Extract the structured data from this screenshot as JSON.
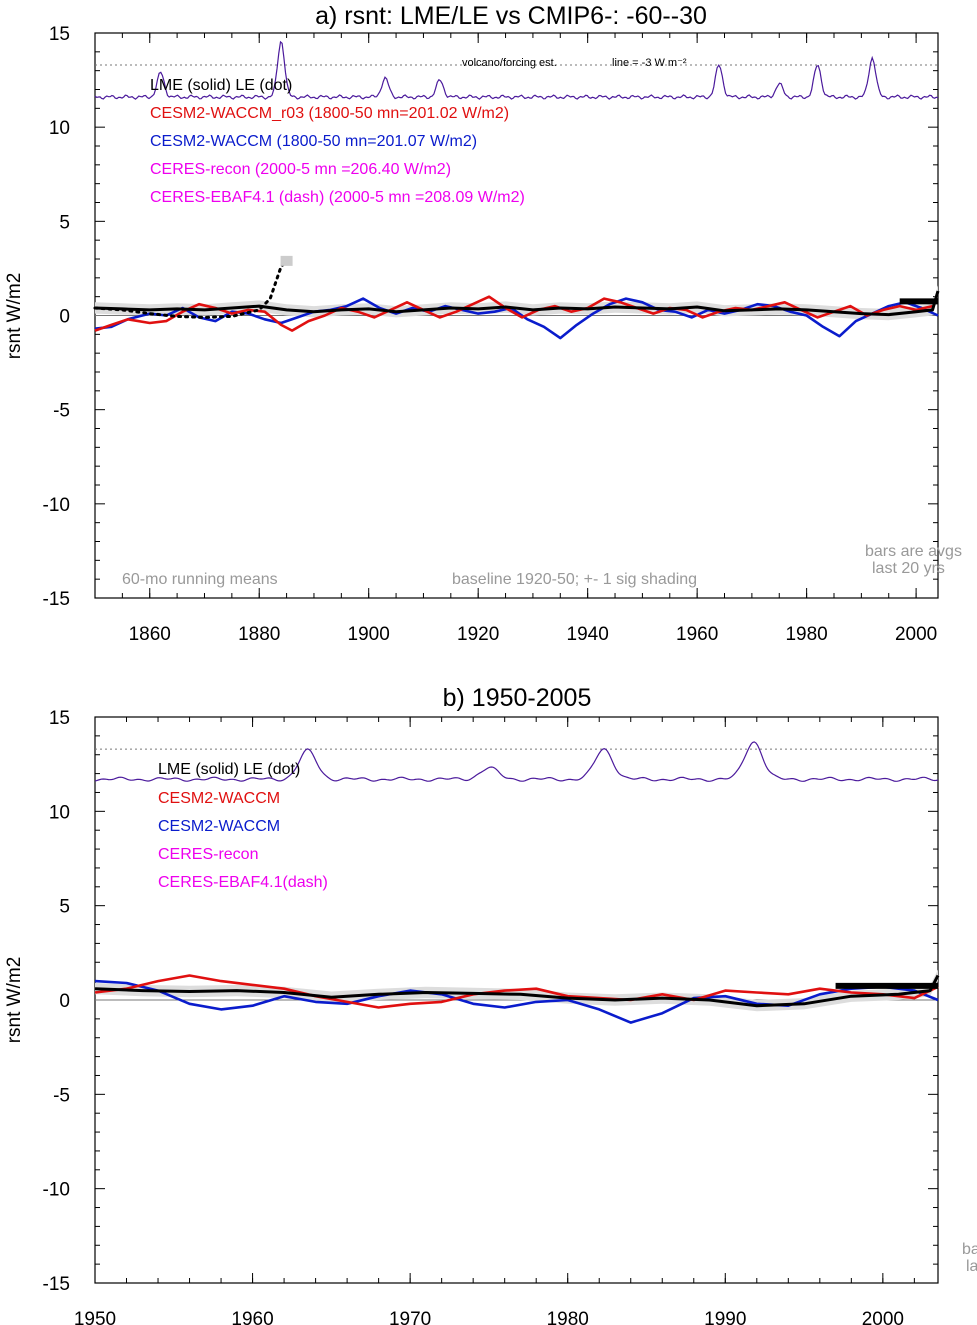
{
  "colors": {
    "lme": "#000000",
    "wacm_r03": "#e01010",
    "wacm": "#0a1ccc",
    "ceres": "#ee00ee",
    "volcano": "#4b1a9c",
    "note": "#999999",
    "shade": "#dddddd"
  },
  "chart_data": [
    {
      "type": "line",
      "title": "a) rsnt: LME/LE vs CMIP6-: -60--30",
      "ylabel": "rsnt W/m2",
      "xlim": [
        1850,
        2004
      ],
      "ylim": [
        -15,
        15
      ],
      "xticks": [
        1860,
        1880,
        1900,
        1920,
        1940,
        1960,
        1980,
        2000
      ],
      "yticks": [
        15,
        10,
        5,
        0,
        -5,
        -10,
        -15
      ],
      "grid": false,
      "legend": [
        {
          "text": "LME (solid)   LE (dot)",
          "color": "#000000"
        },
        {
          "text": "CESM2-WACCM_r03 (1800-50 mn=201.02 W/m2)",
          "color": "#e01010"
        },
        {
          "text": "CESM2-WACCM (1800-50 mn=201.07 W/m2)",
          "color": "#0a1ccc"
        },
        {
          "text": "CERES-recon (2000-5 mn =206.40 W/m2)",
          "color": "#ee00ee"
        },
        {
          "text": "CERES-EBAF4.1 (dash) (2000-5 mn =208.09 W/m2)",
          "color": "#ee00ee"
        }
      ],
      "annotations": {
        "volcano_label": "volcano/forcing est.",
        "line_label": "line = -3 W m⁻²",
        "running_mean": "60-mo running means",
        "baseline": "baseline 1920-50; +- 1 sig shading",
        "bars_line1": "bars are avgs",
        "bars_line2": "last 20 yrs"
      },
      "reference_line": 13.3,
      "volcano_base": 11.6,
      "volcano_peaks": [
        [
          1862,
          12.9
        ],
        [
          1884,
          14.6
        ],
        [
          1903,
          12.6
        ],
        [
          1913,
          12.5
        ],
        [
          1964,
          13.3
        ],
        [
          1975,
          12.3
        ],
        [
          1982,
          13.3
        ],
        [
          1992,
          13.7
        ]
      ],
      "series": [
        {
          "key": "lme",
          "x": [
            1850,
            1855,
            1860,
            1865,
            1870,
            1875,
            1880,
            1885,
            1890,
            1895,
            1900,
            1905,
            1910,
            1915,
            1920,
            1925,
            1930,
            1935,
            1940,
            1945,
            1950,
            1955,
            1960,
            1965,
            1970,
            1975,
            1980,
            1985,
            1990,
            1995,
            2000,
            2003,
            2004
          ],
          "y": [
            0.4,
            0.35,
            0.3,
            0.35,
            0.3,
            0.4,
            0.5,
            0.3,
            0.2,
            0.3,
            0.35,
            0.2,
            0.3,
            0.4,
            0.35,
            0.45,
            0.3,
            0.4,
            0.35,
            0.45,
            0.4,
            0.35,
            0.45,
            0.25,
            0.3,
            0.35,
            0.3,
            0.2,
            0.1,
            0.05,
            0.2,
            0.3,
            1.3
          ]
        },
        {
          "key": "le",
          "x": [
            1850,
            1855,
            1860,
            1865,
            1870,
            1875,
            1880,
            1882,
            1884,
            1885
          ],
          "y": [
            0.4,
            0.3,
            0.1,
            -0.05,
            -0.1,
            -0.05,
            0.3,
            0.9,
            2.6,
            2.9
          ]
        },
        {
          "key": "wacm_r03",
          "x": [
            1850,
            1853,
            1856,
            1860,
            1863,
            1866,
            1869,
            1872,
            1875,
            1878,
            1881,
            1884,
            1886,
            1889,
            1892,
            1895,
            1898,
            1901,
            1904,
            1907,
            1910,
            1913,
            1916,
            1919,
            1922,
            1925,
            1928,
            1931,
            1934,
            1937,
            1940,
            1943,
            1946,
            1949,
            1952,
            1955,
            1958,
            1961,
            1964,
            1967,
            1970,
            1973,
            1976,
            1979,
            1982,
            1985,
            1988,
            1991,
            1994,
            1997,
            2000,
            2003
          ],
          "y": [
            -0.8,
            -0.5,
            -0.2,
            -0.4,
            -0.3,
            0.2,
            0.6,
            0.4,
            0.1,
            0.3,
            0.2,
            -0.5,
            -0.8,
            -0.3,
            0.0,
            0.4,
            0.2,
            -0.1,
            0.3,
            0.7,
            0.3,
            -0.1,
            0.2,
            0.6,
            1.0,
            0.4,
            -0.1,
            0.3,
            0.5,
            0.2,
            0.4,
            0.9,
            0.7,
            0.4,
            0.1,
            0.4,
            0.3,
            -0.1,
            0.2,
            0.4,
            0.3,
            0.5,
            0.7,
            0.3,
            -0.1,
            0.2,
            0.5,
            0.0,
            0.3,
            0.5,
            0.3,
            0.5
          ]
        },
        {
          "key": "wacm",
          "x": [
            1850,
            1853,
            1856,
            1860,
            1863,
            1866,
            1869,
            1872,
            1875,
            1878,
            1881,
            1884,
            1887,
            1890,
            1893,
            1896,
            1899,
            1902,
            1905,
            1908,
            1911,
            1914,
            1917,
            1920,
            1923,
            1926,
            1929,
            1932,
            1935,
            1938,
            1941,
            1944,
            1947,
            1950,
            1953,
            1956,
            1959,
            1962,
            1965,
            1968,
            1971,
            1974,
            1977,
            1980,
            1983,
            1986,
            1989,
            1992,
            1995,
            1998,
            2001,
            2004
          ],
          "y": [
            -0.7,
            -0.6,
            -0.2,
            0.1,
            0.0,
            0.4,
            -0.1,
            -0.3,
            0.2,
            0.1,
            -0.2,
            -0.4,
            -0.1,
            0.2,
            0.3,
            0.5,
            0.9,
            0.4,
            0.1,
            0.4,
            0.2,
            0.5,
            0.3,
            0.1,
            0.2,
            0.4,
            -0.2,
            -0.6,
            -1.2,
            -0.5,
            0.1,
            0.6,
            0.9,
            0.7,
            0.3,
            0.2,
            -0.1,
            0.3,
            0.1,
            0.3,
            0.6,
            0.5,
            0.2,
            0.0,
            -0.6,
            -1.1,
            -0.3,
            0.1,
            0.5,
            0.7,
            0.4,
            0.0
          ]
        }
      ],
      "bars": [
        {
          "x": [
            1997,
            2004
          ],
          "y": 0.75
        }
      ]
    },
    {
      "type": "line",
      "title": "b) 1950-2005",
      "ylabel": "rsnt W/m2",
      "xlim": [
        1950,
        2003.5
      ],
      "ylim": [
        -15,
        15
      ],
      "xticks": [
        1950,
        1960,
        1970,
        1980,
        1990,
        2000
      ],
      "yticks": [
        15,
        10,
        5,
        0,
        -5,
        -10,
        -15
      ],
      "grid": false,
      "legend": [
        {
          "text": "LME (solid)      LE (dot)",
          "color": "#000000"
        },
        {
          "text": "CESM2-WACCM",
          "color": "#e01010"
        },
        {
          "text": "CESM2-WACCM",
          "color": "#0a1ccc"
        },
        {
          "text": "CERES-recon",
          "color": "#ee00ee"
        },
        {
          "text": "CERES-EBAF4.1(dash)",
          "color": "#ee00ee"
        }
      ],
      "annotations": {
        "bars_line1": "ba",
        "bars_line2": "la"
      },
      "reference_line": 13.3,
      "volcano_base": 11.7,
      "volcano_peaks": [
        [
          1963.5,
          13.2
        ],
        [
          1975,
          12.3
        ],
        [
          1982.3,
          13.3
        ],
        [
          1991.8,
          13.7
        ]
      ],
      "series": [
        {
          "key": "lme",
          "x": [
            1950,
            1953,
            1956,
            1959,
            1962,
            1965,
            1968,
            1971,
            1974,
            1977,
            1980,
            1983,
            1986,
            1989,
            1992,
            1995,
            1998,
            2001,
            2003,
            2003.5
          ],
          "y": [
            0.6,
            0.5,
            0.45,
            0.5,
            0.4,
            0.15,
            0.3,
            0.4,
            0.35,
            0.3,
            0.1,
            0.0,
            0.1,
            0.0,
            -0.3,
            -0.2,
            0.2,
            0.3,
            0.5,
            1.3
          ]
        },
        {
          "key": "wacm_r03",
          "x": [
            1950,
            1952,
            1954,
            1956,
            1958,
            1960,
            1962,
            1964,
            1966,
            1968,
            1970,
            1972,
            1974,
            1976,
            1978,
            1980,
            1982,
            1984,
            1986,
            1988,
            1990,
            1992,
            1994,
            1996,
            1998,
            2000,
            2002,
            2003.5
          ],
          "y": [
            0.4,
            0.6,
            1.0,
            1.3,
            1.0,
            0.8,
            0.6,
            0.2,
            -0.1,
            -0.4,
            -0.2,
            -0.1,
            0.3,
            0.5,
            0.6,
            0.2,
            0.1,
            0.0,
            0.3,
            0.0,
            0.5,
            0.4,
            0.3,
            0.6,
            0.4,
            0.3,
            0.1,
            0.7
          ]
        },
        {
          "key": "wacm",
          "x": [
            1950,
            1952,
            1954,
            1956,
            1958,
            1960,
            1962,
            1964,
            1966,
            1968,
            1970,
            1972,
            1974,
            1976,
            1978,
            1980,
            1982,
            1984,
            1986,
            1988,
            1990,
            1992,
            1994,
            1996,
            1998,
            2000,
            2002,
            2003.5
          ],
          "y": [
            1.0,
            0.9,
            0.5,
            -0.2,
            -0.5,
            -0.3,
            0.2,
            -0.1,
            -0.2,
            0.2,
            0.5,
            0.3,
            -0.2,
            -0.4,
            -0.1,
            0.0,
            -0.5,
            -1.2,
            -0.7,
            0.1,
            0.2,
            -0.2,
            -0.3,
            0.3,
            0.6,
            0.7,
            0.5,
            0.0
          ]
        }
      ],
      "bars": [
        {
          "x": [
            1997,
            2003.5
          ],
          "y": 0.75
        }
      ]
    }
  ]
}
